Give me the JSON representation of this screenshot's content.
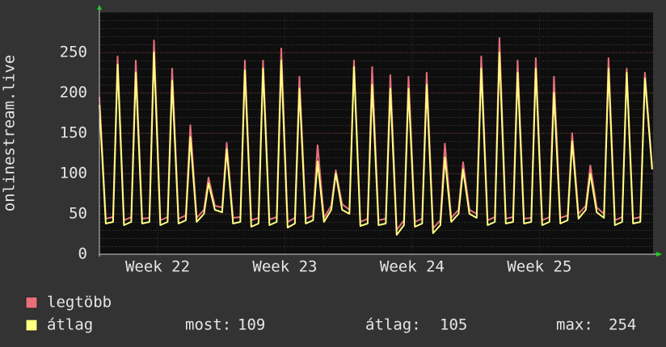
{
  "chart_data": {
    "type": "line",
    "ylabel": "onlinestream.live",
    "xlim": [
      0,
      30.45
    ],
    "xticks": [
      {
        "value": 3.2,
        "label": "Week 22"
      },
      {
        "value": 10.2,
        "label": "Week 23"
      },
      {
        "value": 17.2,
        "label": "Week 24"
      },
      {
        "value": 24.2,
        "label": "Week 25"
      }
    ],
    "ylim": [
      0,
      300
    ],
    "yticks": [
      0,
      50,
      100,
      150,
      200,
      250
    ],
    "grid": true,
    "x": [
      0,
      0.35,
      0.75,
      1,
      1.35,
      1.75,
      2,
      2.35,
      2.75,
      3,
      3.35,
      3.75,
      4,
      4.35,
      4.75,
      5,
      5.35,
      5.75,
      6,
      6.35,
      6.75,
      7,
      7.35,
      7.75,
      8,
      8.35,
      8.75,
      9,
      9.35,
      9.75,
      10,
      10.35,
      10.75,
      11,
      11.35,
      11.75,
      12,
      12.35,
      12.75,
      13,
      13.35,
      13.75,
      14,
      14.35,
      14.75,
      15,
      15.35,
      15.75,
      16,
      16.35,
      16.75,
      17,
      17.35,
      17.75,
      18,
      18.35,
      18.75,
      19,
      19.35,
      19.75,
      20,
      20.35,
      20.75,
      21,
      21.35,
      21.75,
      22,
      22.35,
      22.75,
      23,
      23.35,
      23.75,
      24,
      24.35,
      24.75,
      25,
      25.35,
      25.75,
      26,
      26.35,
      26.75,
      27,
      27.35,
      27.75,
      28,
      28.35,
      28.75,
      29,
      29.35,
      29.75,
      30,
      30.4
    ],
    "series": [
      {
        "name": "legtöbb",
        "color": "#e8707a",
        "values": [
          195,
          44,
          46,
          245,
          42,
          46,
          240,
          44,
          45,
          265,
          42,
          46,
          230,
          44,
          48,
          160,
          45,
          55,
          95,
          60,
          58,
          138,
          45,
          46,
          240,
          42,
          45,
          240,
          43,
          46,
          255,
          40,
          45,
          220,
          44,
          48,
          135,
          45,
          60,
          104,
          62,
          55,
          240,
          40,
          44,
          232,
          42,
          44,
          222,
          30,
          42,
          220,
          40,
          44,
          225,
          32,
          42,
          137,
          45,
          55,
          114,
          55,
          50,
          245,
          42,
          46,
          268,
          44,
          46,
          240,
          44,
          45,
          243,
          42,
          46,
          220,
          45,
          48,
          150,
          50,
          60,
          110,
          58,
          50,
          243,
          42,
          46,
          230,
          44,
          46,
          225,
          108
        ]
      },
      {
        "name": "átlag",
        "color": "#ffff80",
        "values": [
          185,
          38,
          40,
          235,
          36,
          40,
          225,
          38,
          40,
          250,
          36,
          40,
          215,
          38,
          42,
          145,
          40,
          50,
          88,
          55,
          52,
          130,
          38,
          40,
          228,
          34,
          38,
          230,
          36,
          40,
          240,
          33,
          38,
          205,
          38,
          42,
          115,
          40,
          55,
          100,
          55,
          50,
          232,
          35,
          38,
          210,
          36,
          38,
          205,
          24,
          36,
          205,
          34,
          38,
          210,
          26,
          36,
          120,
          40,
          50,
          105,
          50,
          45,
          230,
          36,
          40,
          250,
          38,
          40,
          225,
          38,
          40,
          230,
          36,
          40,
          200,
          38,
          42,
          140,
          44,
          55,
          100,
          52,
          45,
          230,
          36,
          40,
          225,
          38,
          40,
          218,
          105
        ]
      }
    ],
    "stats": [
      {
        "label": "most:",
        "value": 109
      },
      {
        "label": "átlag:",
        "value": 105
      },
      {
        "label": "max:",
        "value": 254
      }
    ]
  }
}
